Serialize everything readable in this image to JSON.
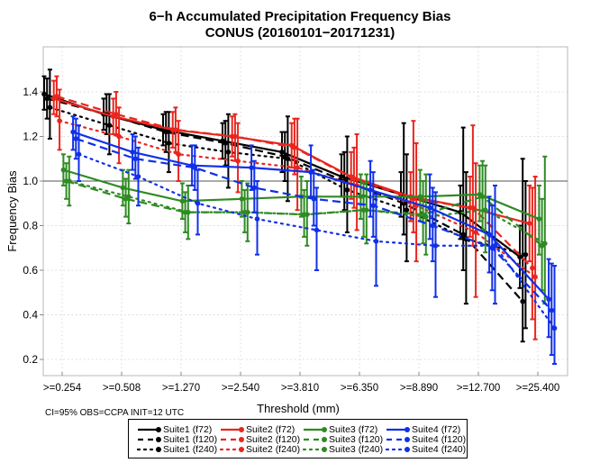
{
  "chart_data": {
    "type": "line",
    "title": "6−h Accumulated Precipitation Frequency Bias",
    "subtitle": "CONUS (20160101−20171231)",
    "xlabel": "Threshold (mm)",
    "ylabel": "Frequency Bias",
    "categories": [
      ">=0.254",
      ">=0.508",
      ">=1.270",
      ">=2.540",
      ">=3.810",
      ">=6.350",
      ">=8.890",
      ">=12.700",
      ">=25.400"
    ],
    "yticks": [
      "0.2",
      "0.4",
      "0.6",
      "0.8",
      "1.0",
      "1.2",
      "1.4"
    ],
    "ytick_values": [
      0.2,
      0.4,
      0.6,
      0.8,
      1.0,
      1.2,
      1.4
    ],
    "ylim": [
      0.13,
      1.56
    ],
    "reference_line": 1.0,
    "grid": true,
    "legend_position": "bottom-center",
    "footer": "CI=95%  OBS=CCPA  INIT=12 UTC",
    "series": [
      {
        "name": "Suite1 (f72)",
        "color": "#000000",
        "dash": "solid",
        "values": [
          1.39,
          1.3,
          1.23,
          1.18,
          1.13,
          1.02,
          0.94,
          0.86,
          0.66
        ],
        "lower": [
          1.32,
          1.23,
          1.16,
          1.1,
          1.04,
          0.93,
          0.84,
          0.74,
          0.52
        ],
        "upper": [
          1.47,
          1.37,
          1.3,
          1.26,
          1.22,
          1.12,
          1.04,
          0.98,
          0.8
        ]
      },
      {
        "name": "Suite1 (f120)",
        "color": "#000000",
        "dash": "dashed",
        "values": [
          1.37,
          1.3,
          1.22,
          1.17,
          1.11,
          1.0,
          0.9,
          0.76,
          0.46
        ],
        "lower": [
          1.28,
          1.21,
          1.13,
          1.07,
          1.0,
          0.87,
          0.76,
          0.6,
          0.28
        ],
        "upper": [
          1.46,
          1.39,
          1.31,
          1.27,
          1.22,
          1.13,
          1.26,
          1.24,
          1.1
        ]
      },
      {
        "name": "Suite1 (f240)",
        "color": "#000000",
        "dash": "dotted",
        "values": [
          1.33,
          1.25,
          1.17,
          1.13,
          1.1,
          0.96,
          0.87,
          0.74,
          0.67
        ],
        "lower": [
          1.19,
          1.12,
          1.04,
          0.97,
          0.91,
          0.77,
          0.64,
          0.45,
          0.34
        ],
        "upper": [
          1.5,
          1.39,
          1.31,
          1.3,
          1.29,
          1.2,
          1.12,
          1.04,
          1.0
        ]
      },
      {
        "name": "Suite2 (f72)",
        "color": "#e8261e",
        "dash": "solid",
        "values": [
          1.37,
          1.29,
          1.23,
          1.2,
          1.16,
          1.02,
          0.93,
          0.88,
          0.81
        ],
        "lower": [
          1.3,
          1.21,
          1.15,
          1.11,
          1.06,
          0.92,
          0.82,
          0.75,
          0.64
        ],
        "upper": [
          1.45,
          1.37,
          1.31,
          1.29,
          1.26,
          1.13,
          1.04,
          1.02,
          0.98
        ]
      },
      {
        "name": "Suite2 (f120)",
        "color": "#e8261e",
        "dash": "dashed",
        "values": [
          1.38,
          1.3,
          1.23,
          1.2,
          1.15,
          1.01,
          0.92,
          0.88,
          0.61
        ],
        "lower": [
          1.29,
          1.21,
          1.13,
          1.09,
          1.03,
          0.88,
          0.77,
          0.71,
          0.38
        ],
        "upper": [
          1.47,
          1.4,
          1.33,
          1.3,
          1.28,
          1.15,
          1.27,
          1.25,
          0.97
        ]
      },
      {
        "name": "Suite2 (f240)",
        "color": "#e8261e",
        "dash": "dotted",
        "values": [
          1.27,
          1.2,
          1.12,
          1.09,
          1.06,
          0.98,
          0.89,
          0.77,
          0.57
        ],
        "lower": [
          1.14,
          1.08,
          1.0,
          0.95,
          0.87,
          0.78,
          0.64,
          0.48,
          0.29
        ],
        "upper": [
          1.41,
          1.33,
          1.27,
          1.26,
          1.28,
          1.21,
          1.17,
          1.08,
          1.02
        ]
      },
      {
        "name": "Suite3 (f72)",
        "color": "#2e8b22",
        "dash": "solid",
        "values": [
          1.05,
          0.97,
          0.91,
          0.92,
          0.93,
          0.93,
          0.93,
          0.94,
          0.83
        ],
        "lower": [
          0.98,
          0.89,
          0.83,
          0.84,
          0.84,
          0.83,
          0.82,
          0.82,
          0.67
        ],
        "upper": [
          1.12,
          1.05,
          0.99,
          1.0,
          1.02,
          1.03,
          1.05,
          1.07,
          0.98
        ]
      },
      {
        "name": "Suite3 (f120)",
        "color": "#2e8b22",
        "dash": "dashed",
        "values": [
          1.0,
          0.92,
          0.86,
          0.86,
          0.85,
          0.87,
          0.85,
          0.93,
          0.71
        ],
        "lower": [
          0.92,
          0.84,
          0.77,
          0.77,
          0.75,
          0.75,
          0.72,
          0.78,
          0.51
        ],
        "upper": [
          1.08,
          1.01,
          0.95,
          0.96,
          0.96,
          0.99,
          1.0,
          1.09,
          0.92
        ]
      },
      {
        "name": "Suite3 (f240)",
        "color": "#2e8b22",
        "dash": "dotted",
        "values": [
          1.0,
          0.93,
          0.86,
          0.86,
          0.85,
          0.87,
          0.84,
          0.87,
          0.72
        ],
        "lower": [
          0.89,
          0.81,
          0.74,
          0.73,
          0.71,
          0.72,
          0.67,
          0.68,
          0.45
        ],
        "upper": [
          1.11,
          1.05,
          0.98,
          0.99,
          1.0,
          1.03,
          1.03,
          1.07,
          1.11
        ]
      },
      {
        "name": "Suite4 (f72)",
        "color": "#1030e8",
        "dash": "solid",
        "values": [
          1.22,
          1.13,
          1.07,
          1.06,
          1.04,
          0.96,
          0.88,
          0.76,
          0.47
        ],
        "lower": [
          1.14,
          1.05,
          0.98,
          0.96,
          0.93,
          0.84,
          0.74,
          0.59,
          0.3
        ],
        "upper": [
          1.29,
          1.21,
          1.16,
          1.16,
          1.16,
          1.09,
          1.03,
          0.93,
          0.65
        ]
      },
      {
        "name": "Suite4 (f120)",
        "color": "#1030e8",
        "dash": "dashed",
        "values": [
          1.19,
          1.1,
          1.06,
          0.97,
          0.92,
          0.89,
          0.8,
          0.7,
          0.42
        ],
        "lower": [
          1.1,
          1.01,
          0.96,
          0.86,
          0.8,
          0.75,
          0.64,
          0.51,
          0.22
        ],
        "upper": [
          1.28,
          1.2,
          1.16,
          1.09,
          1.05,
          1.04,
          0.97,
          0.89,
          0.63
        ]
      },
      {
        "name": "Suite4 (f240)",
        "color": "#1030e8",
        "dash": "dotted",
        "values": [
          1.12,
          1.02,
          0.9,
          0.83,
          0.78,
          0.73,
          0.71,
          0.71,
          0.34
        ],
        "lower": [
          1.0,
          0.89,
          0.76,
          0.67,
          0.6,
          0.53,
          0.48,
          0.45,
          0.18
        ],
        "upper": [
          1.25,
          1.15,
          1.05,
          1.0,
          0.97,
          0.94,
          0.95,
          0.98,
          0.62
        ]
      }
    ]
  }
}
